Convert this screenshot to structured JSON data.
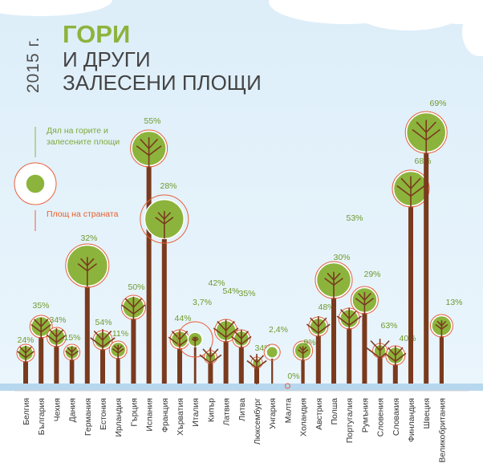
{
  "header": {
    "year": "2015 г.",
    "title_line1": "ГОРИ",
    "title_line2": "И ДРУГИ",
    "title_line3": "ЗАЛЕСЕНИ ПЛОЩИ"
  },
  "legend": {
    "forest_share": "Дял на горите и залесените площи",
    "country_area": "Площ на страната"
  },
  "colors": {
    "trunk": "#7a3a1e",
    "crown": "#8cb43c",
    "crown_border": "#ffffff",
    "area_ring": "#e8603c",
    "label": "#6f9a2e",
    "country_text": "#333333"
  },
  "chart_data": {
    "type": "pictogram",
    "unit": "%",
    "categories": [
      "Белгия",
      "България",
      "Чехия",
      "Дания",
      "Германия",
      "Естония",
      "Ирландия",
      "Гърция",
      "Испания",
      "Франция",
      "Хърватия",
      "Италия",
      "Кипър",
      "Латвия",
      "Литва",
      "Люксембург",
      "Унгария",
      "Малта",
      "Холандия",
      "Австрия",
      "Полша",
      "Португалия",
      "Румъния",
      "Словения",
      "Словакия",
      "Финландия",
      "Швеция",
      "Великобритания"
    ],
    "labels": [
      "24%",
      "35%",
      "34%",
      "15%",
      "32%",
      "54%",
      "11%",
      "50%",
      "55%",
      "28%",
      "44%",
      "3,7%",
      "42%",
      "54%",
      "35%",
      "34%",
      "2,4%",
      "0%",
      "9%",
      "48%",
      "30%",
      "53%",
      "29%",
      "63%",
      "40%",
      "68%",
      "69%",
      "13%"
    ],
    "values": [
      24,
      35,
      34,
      15,
      32,
      54,
      11,
      50,
      55,
      28,
      44,
      3.7,
      42,
      54,
      35,
      34,
      2.4,
      0,
      9,
      48,
      30,
      53,
      29,
      63,
      40,
      68,
      69,
      13
    ]
  }
}
